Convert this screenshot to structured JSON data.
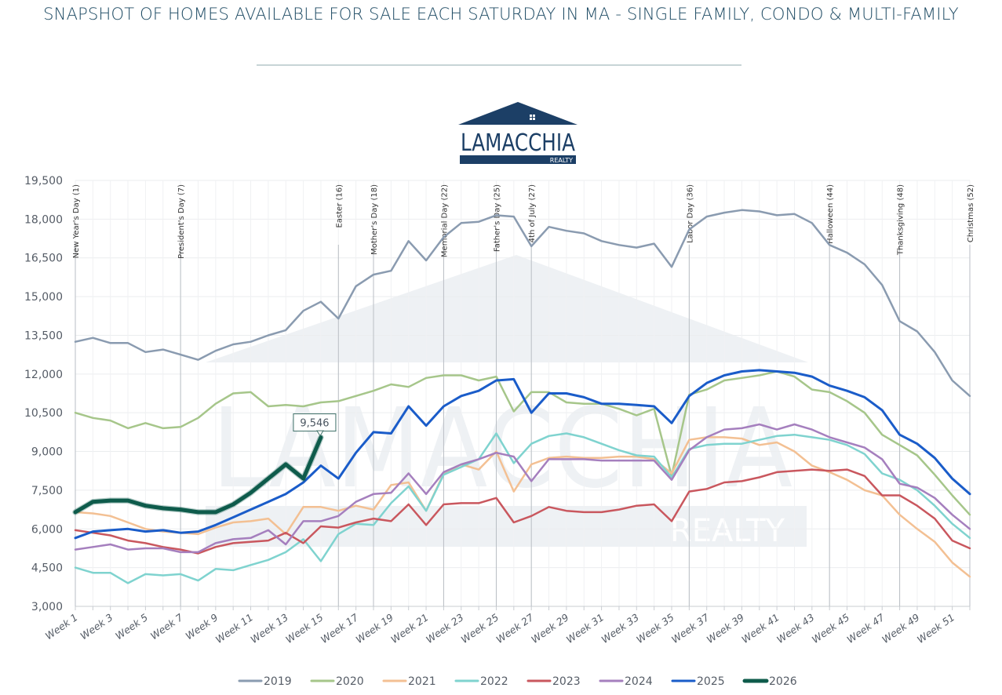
{
  "header": {
    "title": "SNAPSHOT OF HOMES AVAILABLE FOR SALE EACH SATURDAY IN MA - SINGLE FAMILY, CONDO & MULTI-FAMILY"
  },
  "logo": {
    "name": "LAMACCHIA",
    "tagline": "REALTY",
    "color": "#1c3f66"
  },
  "callout": {
    "label": "9,546",
    "series": "2026",
    "week": 15
  },
  "chart_data": {
    "type": "line",
    "title": "SNAPSHOT OF HOMES AVAILABLE FOR SALE EACH SATURDAY IN MA - SINGLE FAMILY, CONDO & MULTI-FAMILY",
    "xlabel": "",
    "ylabel": "",
    "ylim": [
      3000,
      19500
    ],
    "yticks": [
      3000,
      4500,
      6000,
      7500,
      9000,
      10500,
      12000,
      13500,
      15000,
      16500,
      18000,
      19500
    ],
    "ytick_labels": [
      "3,000",
      "4,500",
      "6,000",
      "7,500",
      "9,000",
      "10,500",
      "12,000",
      "13,500",
      "15,000",
      "16,500",
      "18,000",
      "19,500"
    ],
    "x": [
      1,
      2,
      3,
      4,
      5,
      6,
      7,
      8,
      9,
      10,
      11,
      12,
      13,
      14,
      15,
      16,
      17,
      18,
      19,
      20,
      21,
      22,
      23,
      24,
      25,
      26,
      27,
      28,
      29,
      30,
      31,
      32,
      33,
      34,
      35,
      36,
      37,
      38,
      39,
      40,
      41,
      42,
      43,
      44,
      45,
      46,
      47,
      48,
      49,
      50,
      51,
      52
    ],
    "xtick_labels": [
      "Week 1",
      "Week 3",
      "Week 5",
      "Week 7",
      "Week 9",
      "Week 11",
      "Week 13",
      "Week 15",
      "Week 17",
      "Week 19",
      "Week 21",
      "Week 23",
      "Week 25",
      "Week 27",
      "Week 29",
      "Week 31",
      "Week 33",
      "Week 35",
      "Week 37",
      "Week 39",
      "Week 41",
      "Week 43",
      "Week 45",
      "Week 47",
      "Week 49",
      "Week 51"
    ],
    "grid": true,
    "legend_position": "bottom",
    "annotations": [
      {
        "label": "New Year's Day (1)",
        "week": 1
      },
      {
        "label": "President's Day (7)",
        "week": 7
      },
      {
        "label": "Easter (16)",
        "week": 16
      },
      {
        "label": "Mother's Day (18)",
        "week": 18
      },
      {
        "label": "Memorial Day (22)",
        "week": 22
      },
      {
        "label": "Father's Day (25)",
        "week": 25
      },
      {
        "label": "4th of July (27)",
        "week": 27
      },
      {
        "label": "Labor Day (36)",
        "week": 36
      },
      {
        "label": "Halloween (44)",
        "week": 44
      },
      {
        "label": "Thanksgiving (48)",
        "week": 48
      },
      {
        "label": "Christmas (52)",
        "week": 52
      },
      {
        "label": "9,546",
        "week": 15,
        "series": "2026"
      }
    ],
    "series": [
      {
        "name": "2019",
        "color": "#8a9bb0",
        "width": 2.5,
        "values": [
          13250,
          13400,
          13200,
          13200,
          12850,
          12950,
          12750,
          12550,
          12900,
          13150,
          13250,
          13500,
          13700,
          14450,
          14800,
          14150,
          15400,
          15850,
          16000,
          17150,
          16400,
          17300,
          17850,
          17900,
          18150,
          18100,
          16950,
          17700,
          17550,
          17450,
          17150,
          17000,
          16900,
          17050,
          16150,
          17600,
          18100,
          18250,
          18350,
          18300,
          18150,
          18200,
          17850,
          17000,
          16700,
          16250,
          15450,
          14050,
          13650,
          12850,
          11750,
          11150
        ]
      },
      {
        "name": "2020",
        "color": "#a6c68a",
        "width": 2.5,
        "values": [
          10500,
          10300,
          10200,
          9900,
          10100,
          9900,
          9950,
          10300,
          10850,
          11250,
          11300,
          10750,
          10800,
          10750,
          10900,
          10950,
          11150,
          11350,
          11600,
          11500,
          11850,
          11950,
          11950,
          11750,
          11900,
          10550,
          11300,
          11300,
          10900,
          10850,
          10850,
          10650,
          10400,
          10650,
          8050,
          11200,
          11400,
          11750,
          11850,
          11950,
          12100,
          11900,
          11400,
          11300,
          10950,
          10500,
          9650,
          9250,
          8850,
          8100,
          7300,
          6550
        ]
      },
      {
        "name": "2021",
        "color": "#f3c093",
        "width": 2.5,
        "values": [
          6650,
          6600,
          6500,
          6250,
          6000,
          5900,
          5850,
          5800,
          6050,
          6250,
          6300,
          6400,
          5800,
          6850,
          6850,
          6700,
          6900,
          6750,
          7700,
          7800,
          6700,
          8150,
          8500,
          8300,
          9000,
          7450,
          8500,
          8750,
          8800,
          8750,
          8750,
          8800,
          8800,
          8700,
          8150,
          9450,
          9550,
          9550,
          9500,
          9250,
          9350,
          9000,
          8450,
          8200,
          7900,
          7500,
          7300,
          6550,
          6000,
          5500,
          4700,
          4150
        ]
      },
      {
        "name": "2022",
        "color": "#7fd3cf",
        "width": 2.5,
        "values": [
          4500,
          4300,
          4300,
          3900,
          4250,
          4200,
          4250,
          4000,
          4450,
          4400,
          4600,
          4800,
          5100,
          5600,
          4750,
          5800,
          6200,
          6150,
          7000,
          7650,
          6700,
          8100,
          8400,
          8700,
          9700,
          8550,
          9300,
          9600,
          9700,
          9550,
          9300,
          9050,
          8850,
          8800,
          8000,
          9100,
          9250,
          9300,
          9300,
          9450,
          9600,
          9650,
          9550,
          9450,
          9250,
          8900,
          8150,
          7900,
          7500,
          6900,
          6200,
          5650
        ]
      },
      {
        "name": "2023",
        "color": "#c9575e",
        "width": 2.5,
        "values": [
          5950,
          5850,
          5750,
          5550,
          5450,
          5300,
          5200,
          5050,
          5300,
          5450,
          5500,
          5550,
          5850,
          5450,
          6100,
          6050,
          6250,
          6400,
          6300,
          6950,
          6150,
          6950,
          7000,
          7000,
          7200,
          6250,
          6500,
          6850,
          6700,
          6650,
          6650,
          6750,
          6900,
          6950,
          6300,
          7450,
          7550,
          7800,
          7850,
          8000,
          8200,
          8250,
          8300,
          8250,
          8300,
          8050,
          7300,
          7300,
          6900,
          6400,
          5550,
          5250
        ]
      },
      {
        "name": "2024",
        "color": "#a57fbe",
        "width": 2.5,
        "values": [
          5200,
          5300,
          5400,
          5200,
          5250,
          5250,
          5100,
          5100,
          5450,
          5600,
          5650,
          5950,
          5400,
          6300,
          6300,
          6500,
          7050,
          7350,
          7400,
          8150,
          7350,
          8200,
          8500,
          8700,
          8950,
          8800,
          7850,
          8700,
          8700,
          8700,
          8650,
          8650,
          8650,
          8650,
          7900,
          9050,
          9550,
          9850,
          9900,
          10050,
          9850,
          10050,
          9850,
          9550,
          9350,
          9150,
          8700,
          7750,
          7600,
          7200,
          6550,
          6000
        ]
      },
      {
        "name": "2025",
        "color": "#1a5cc9",
        "width": 3,
        "values": [
          5650,
          5900,
          5950,
          6000,
          5900,
          5950,
          5850,
          5900,
          6150,
          6450,
          6750,
          7050,
          7350,
          7800,
          8450,
          7950,
          8950,
          9750,
          9700,
          10750,
          10000,
          10750,
          11150,
          11350,
          11750,
          11800,
          10500,
          11250,
          11250,
          11100,
          10850,
          10850,
          10800,
          10750,
          10100,
          11150,
          11650,
          11950,
          12100,
          12150,
          12100,
          12050,
          11900,
          11550,
          11350,
          11100,
          10600,
          9650,
          9300,
          8750,
          7950,
          7350
        ]
      },
      {
        "name": "2026",
        "color": "#0e5b4b",
        "width": 5,
        "values": [
          6650,
          7050,
          7100,
          7100,
          6900,
          6800,
          6750,
          6650,
          6650,
          6950,
          7400,
          7950,
          8500,
          7950,
          9546,
          null,
          null,
          null,
          null,
          null,
          null,
          null,
          null,
          null,
          null,
          null,
          null,
          null,
          null,
          null,
          null,
          null,
          null,
          null,
          null,
          null,
          null,
          null,
          null,
          null,
          null,
          null,
          null,
          null,
          null,
          null,
          null,
          null,
          null,
          null,
          null,
          null
        ]
      }
    ]
  },
  "legend": {
    "items": [
      {
        "label": "2019",
        "color": "#8a9bb0"
      },
      {
        "label": "2020",
        "color": "#a6c68a"
      },
      {
        "label": "2021",
        "color": "#f3c093"
      },
      {
        "label": "2022",
        "color": "#7fd3cf"
      },
      {
        "label": "2023",
        "color": "#c9575e"
      },
      {
        "label": "2024",
        "color": "#a57fbe"
      },
      {
        "label": "2025",
        "color": "#1a5cc9"
      },
      {
        "label": "2026",
        "color": "#0e5b4b"
      }
    ]
  }
}
